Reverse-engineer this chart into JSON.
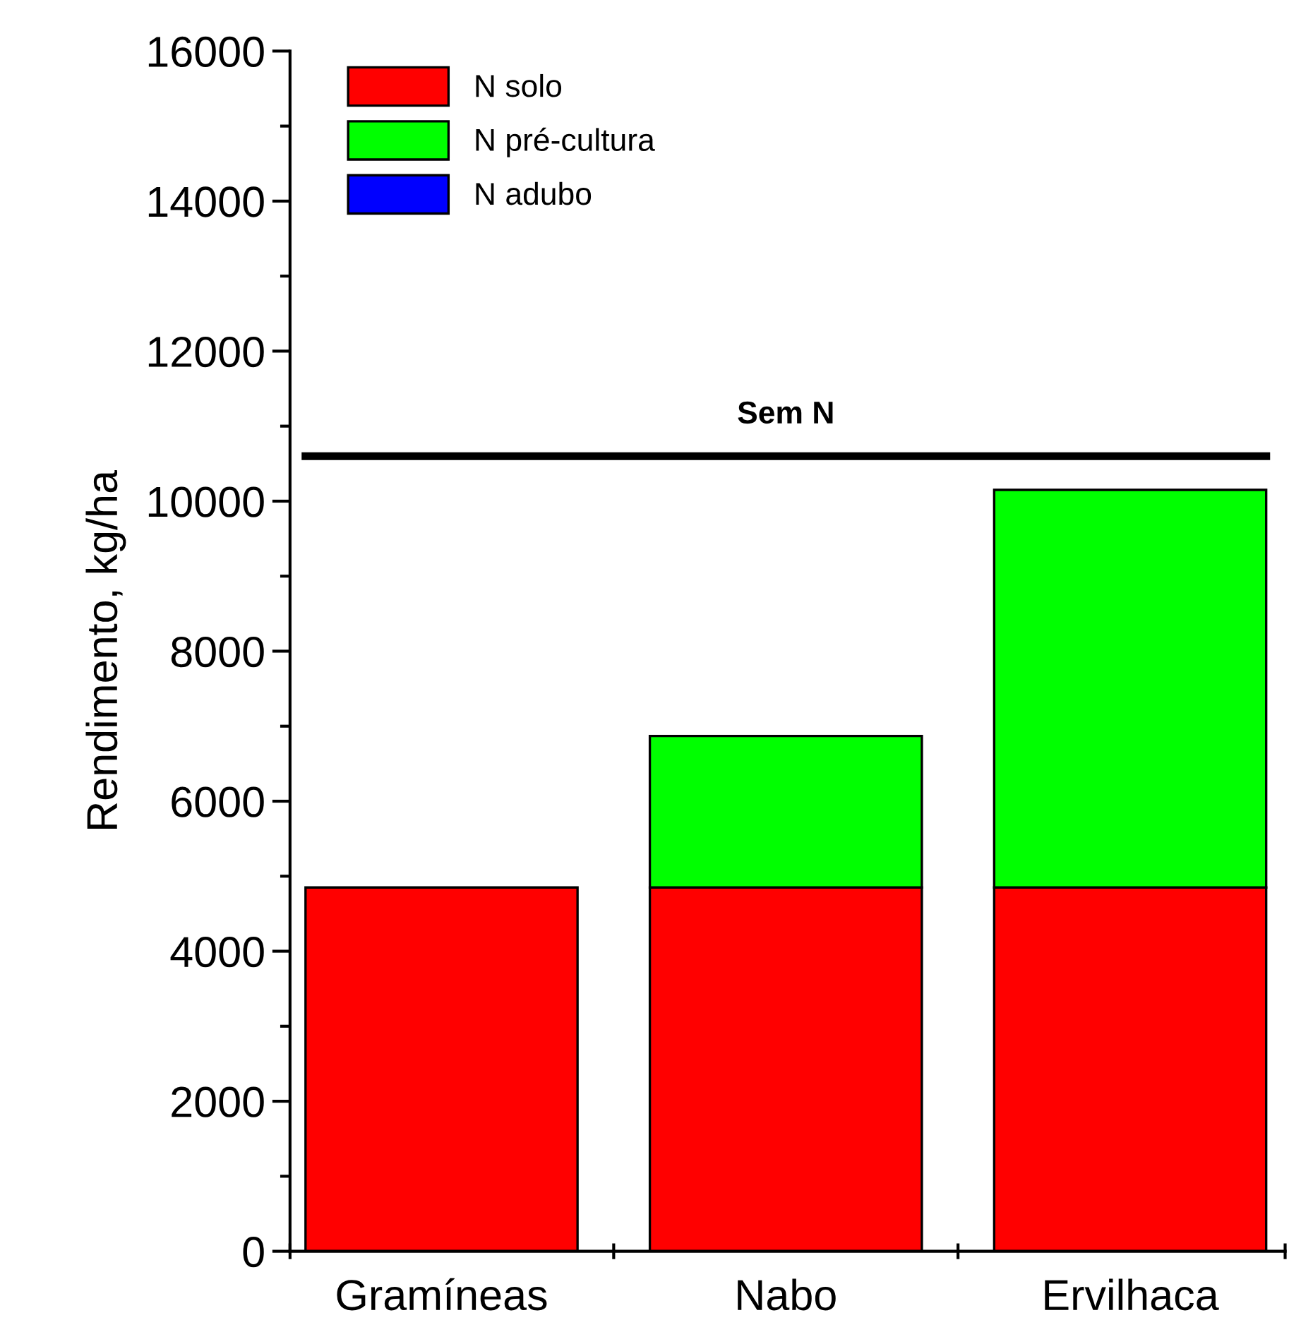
{
  "chart_data": {
    "type": "bar",
    "stacked": true,
    "ylabel": "Rendimento, kg/ha",
    "categories": [
      "Gramíneas",
      "Nabo",
      "Ervilhaca"
    ],
    "series": [
      {
        "name": "N solo",
        "color": "#ff0000",
        "values": [
          4850,
          4850,
          4850
        ]
      },
      {
        "name": "N pré-cultura",
        "color": "#00ff00",
        "values": [
          null,
          2020,
          5300
        ]
      },
      {
        "name": "N adubo",
        "color": "#0000ff",
        "values": [
          null,
          null,
          null
        ]
      }
    ],
    "ylim": [
      0,
      16000
    ],
    "yticks": [
      0,
      2000,
      4000,
      6000,
      8000,
      10000,
      12000,
      14000,
      16000
    ],
    "ref_lines": [
      {
        "axis": "y",
        "value": 10600,
        "label": "Sem N",
        "color": "#000000"
      }
    ],
    "legend": "top left",
    "grid": false
  }
}
